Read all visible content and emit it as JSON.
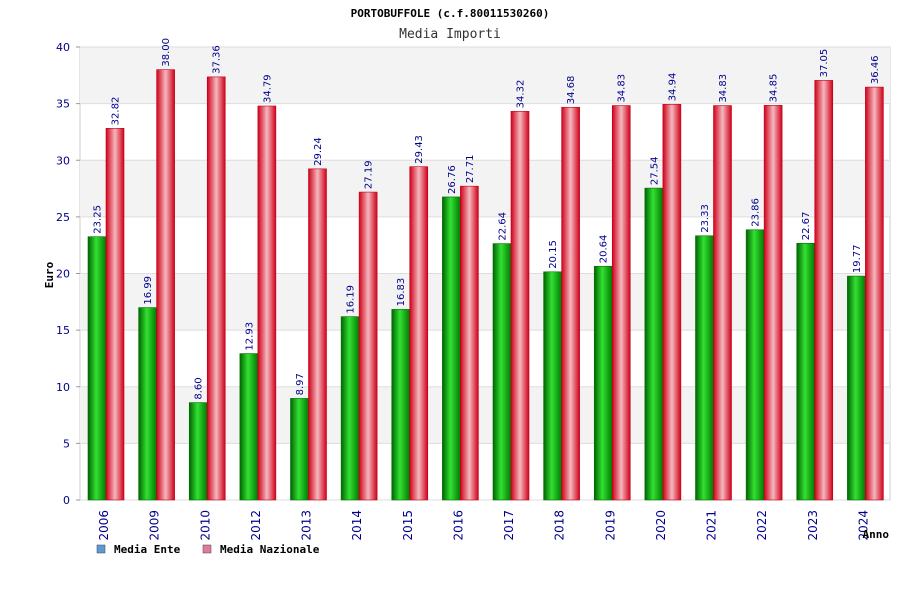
{
  "chart_data": {
    "type": "bar",
    "title": "PORTOBUFFOLE (c.f.80011530260)",
    "subtitle": "Media Importi",
    "xlabel": "Anno",
    "ylabel": "Euro",
    "ylim": [
      0,
      40
    ],
    "yticks": [
      0,
      5,
      10,
      15,
      20,
      25,
      30,
      35,
      40
    ],
    "categories": [
      "2006",
      "2009",
      "2010",
      "2012",
      "2013",
      "2014",
      "2015",
      "2016",
      "2017",
      "2018",
      "2019",
      "2020",
      "2021",
      "2022",
      "2023",
      "2024"
    ],
    "series": [
      {
        "name": "Media Ente",
        "color": "#00a000",
        "values": [
          23.25,
          16.99,
          8.6,
          12.93,
          8.97,
          16.19,
          16.83,
          26.76,
          22.64,
          20.15,
          20.64,
          27.54,
          23.33,
          23.86,
          22.67,
          19.77
        ],
        "labels": [
          "23.25",
          "16.99",
          "8.60",
          "12.93",
          "8.97",
          "16.19",
          "16.83",
          "26.76",
          "22.64",
          "20.15",
          "20.64",
          "27.54",
          "23.33",
          "23.86",
          "22.67",
          "19.77"
        ]
      },
      {
        "name": "Media Nazionale",
        "color": "#e8202a",
        "values": [
          32.82,
          38.0,
          37.36,
          34.79,
          29.24,
          27.19,
          29.43,
          27.71,
          34.32,
          34.68,
          34.83,
          34.94,
          34.83,
          34.85,
          37.05,
          36.46
        ],
        "labels": [
          "32.82",
          "38.00",
          "37.36",
          "34.79",
          "29.24",
          "27.19",
          "29.43",
          "27.71",
          "34.32",
          "34.68",
          "34.83",
          "34.94",
          "34.83",
          "34.85",
          "37.05",
          "36.46"
        ]
      }
    ],
    "legend": [
      {
        "name": "Media Ente",
        "swatch": "#5b9bd5"
      },
      {
        "name": "Media Nazionale",
        "swatch": "#e07aa0"
      }
    ],
    "grid": true,
    "legend_position": "bottom-left"
  }
}
